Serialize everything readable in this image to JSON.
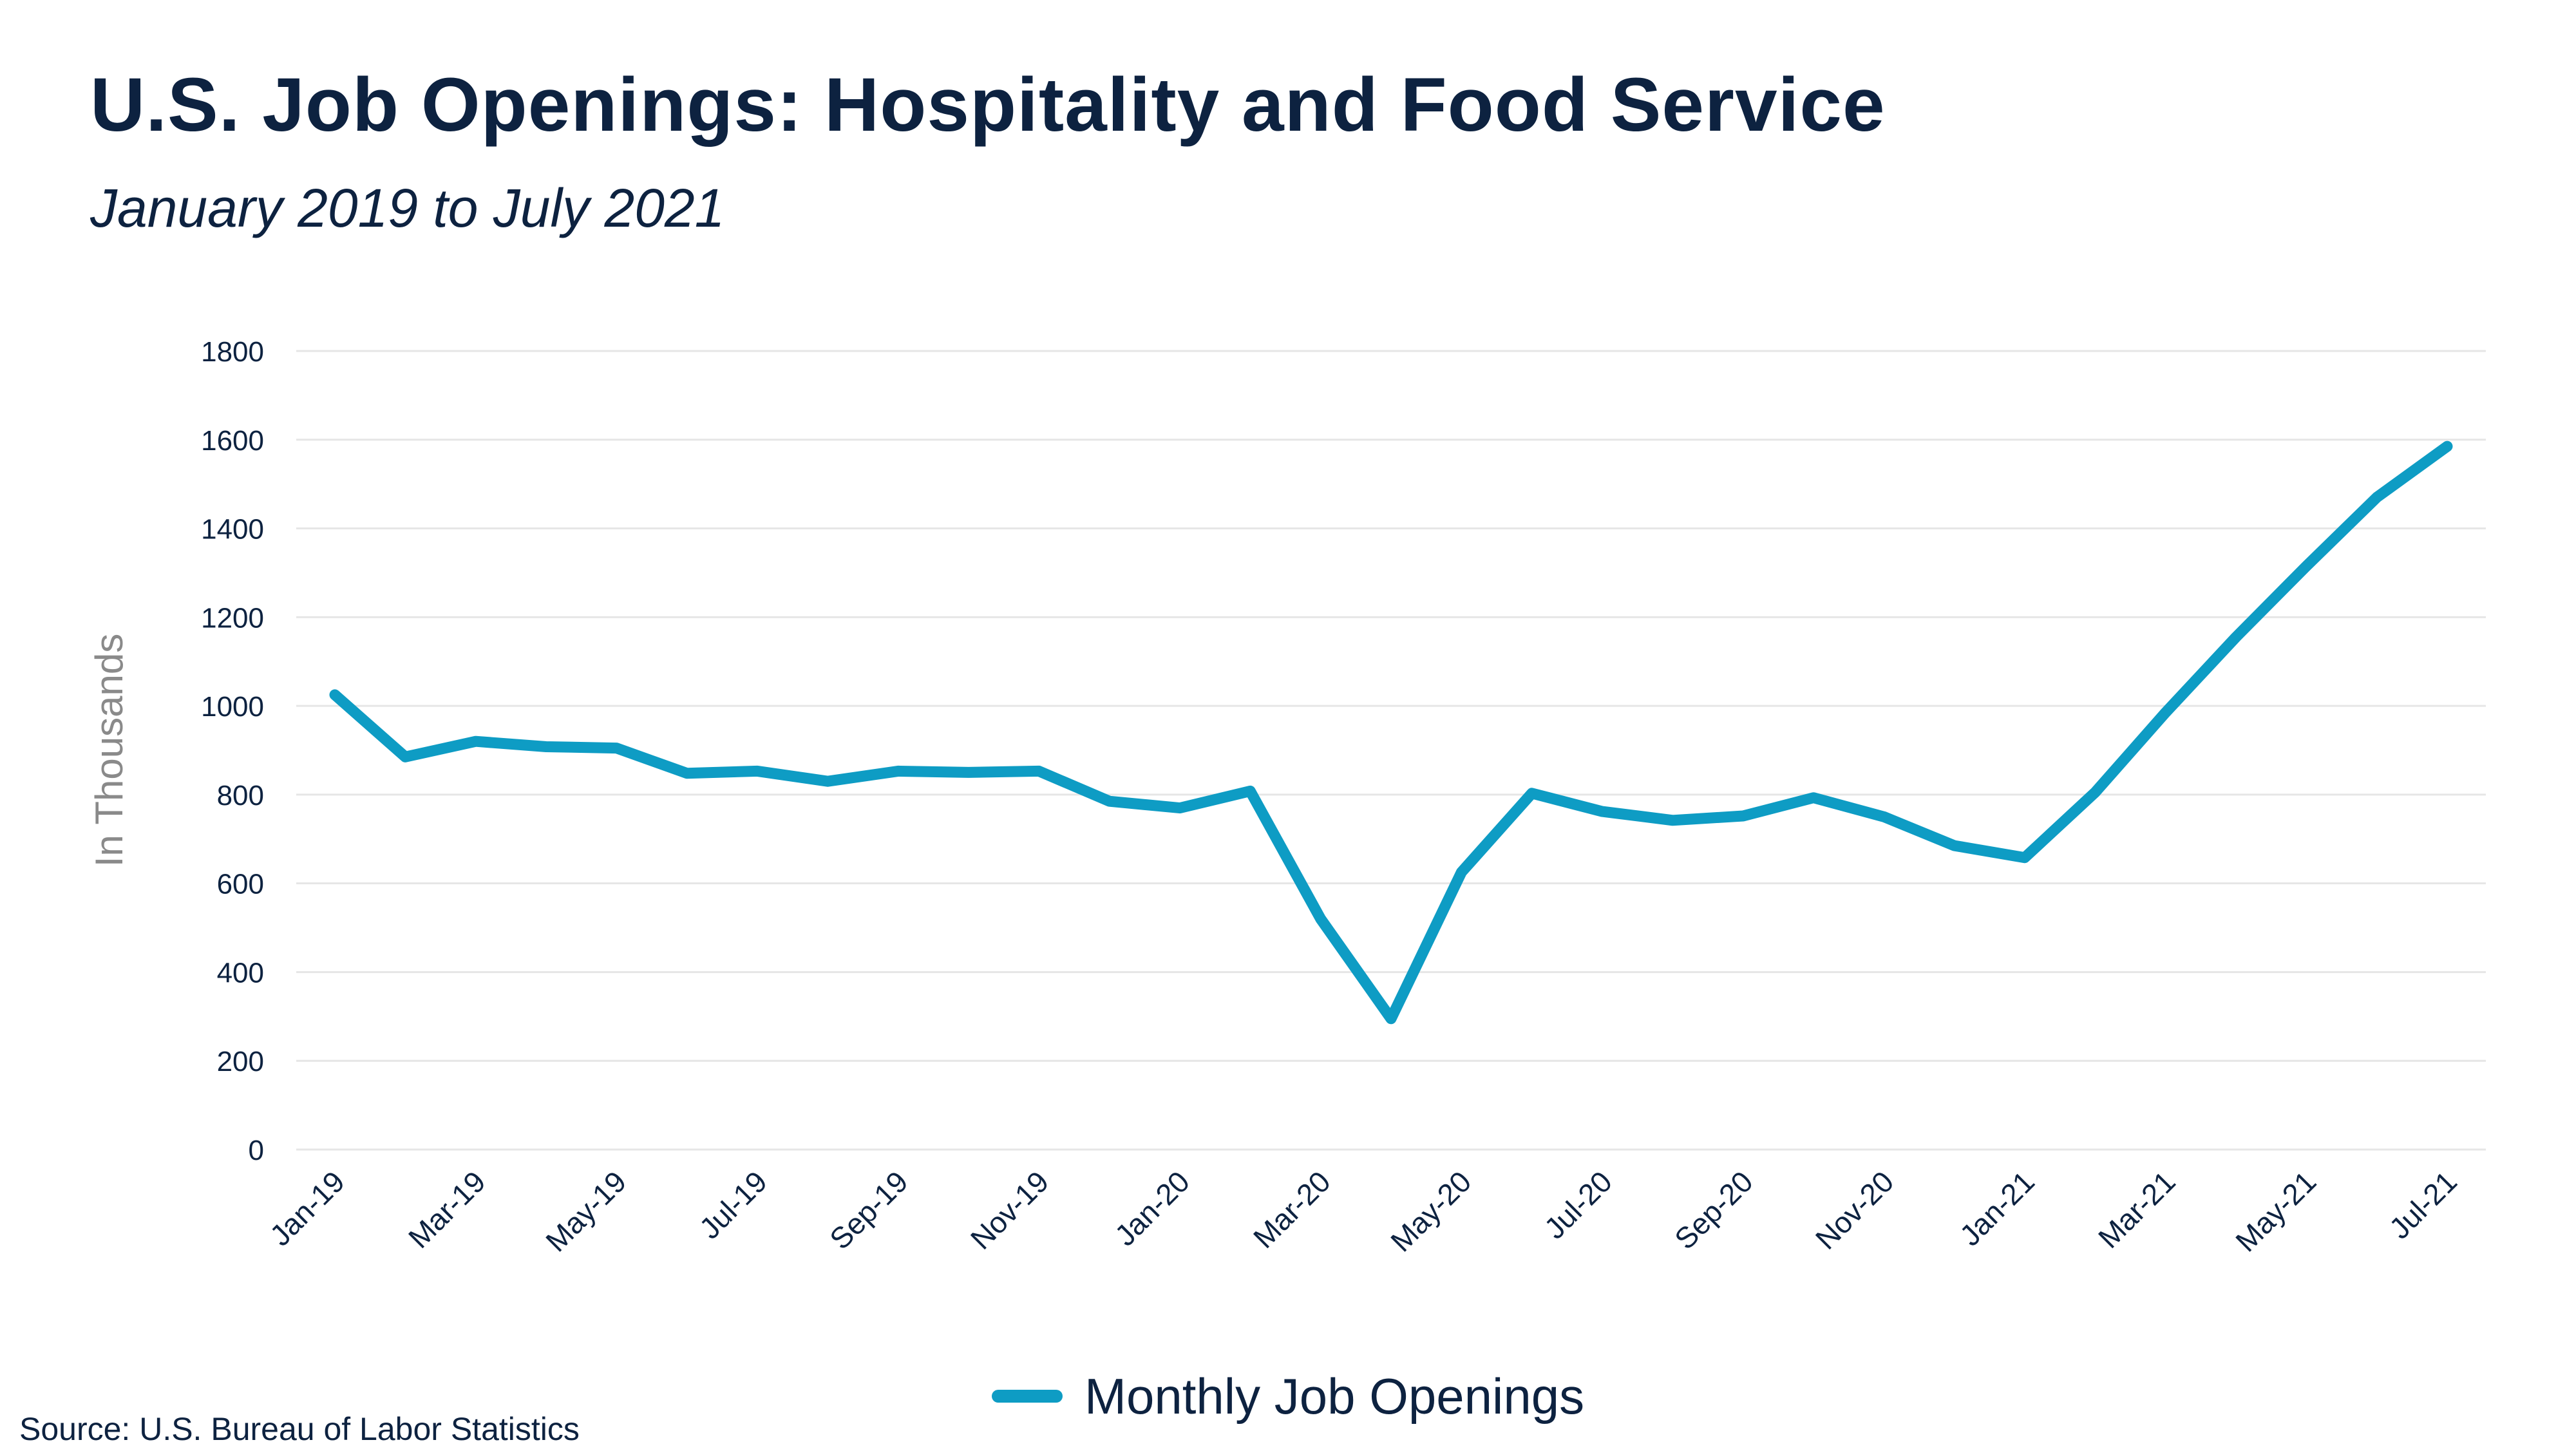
{
  "chart_data": {
    "type": "line",
    "title": "U.S. Job Openings: Hospitality and Food Service",
    "subtitle": "January 2019 to July 2021",
    "ylabel": "In Thousands",
    "xlabel": "",
    "ylim": [
      0,
      1800
    ],
    "yticks": [
      "0",
      "200",
      "400",
      "600",
      "800",
      "1000",
      "1200",
      "1400",
      "1600",
      "1800"
    ],
    "xtick_labels": [
      "Jan-19",
      "Mar-19",
      "May-19",
      "Jul-19",
      "Sep-19",
      "Nov-19",
      "Jan-20",
      "Mar-20",
      "May-20",
      "Jul-20",
      "Sep-20",
      "Nov-20",
      "Jan-21",
      "Mar-21",
      "May-21",
      "Jul-21"
    ],
    "categories": [
      "Jan-19",
      "Feb-19",
      "Mar-19",
      "Apr-19",
      "May-19",
      "Jun-19",
      "Jul-19",
      "Aug-19",
      "Sep-19",
      "Oct-19",
      "Nov-19",
      "Dec-19",
      "Jan-20",
      "Feb-20",
      "Mar-20",
      "Apr-20",
      "May-20",
      "Jun-20",
      "Jul-20",
      "Aug-20",
      "Sep-20",
      "Oct-20",
      "Nov-20",
      "Dec-20",
      "Jan-21",
      "Feb-21",
      "Mar-21",
      "Apr-21",
      "May-21",
      "Jun-21",
      "Jul-21"
    ],
    "series": [
      {
        "name": "Monthly Job Openings",
        "values": [
          1025,
          885,
          920,
          908,
          905,
          848,
          853,
          830,
          853,
          850,
          853,
          785,
          770,
          808,
          520,
          295,
          625,
          803,
          762,
          742,
          752,
          793,
          750,
          685,
          658,
          805,
          985,
          1155,
          1315,
          1470,
          1585
        ]
      }
    ],
    "grid": true,
    "legend_position": "bottom-center",
    "line_color": "#0e9cc4",
    "grid_color": "#e6e6e6"
  },
  "source": "Source: U.S. Bureau of Labor Statistics"
}
